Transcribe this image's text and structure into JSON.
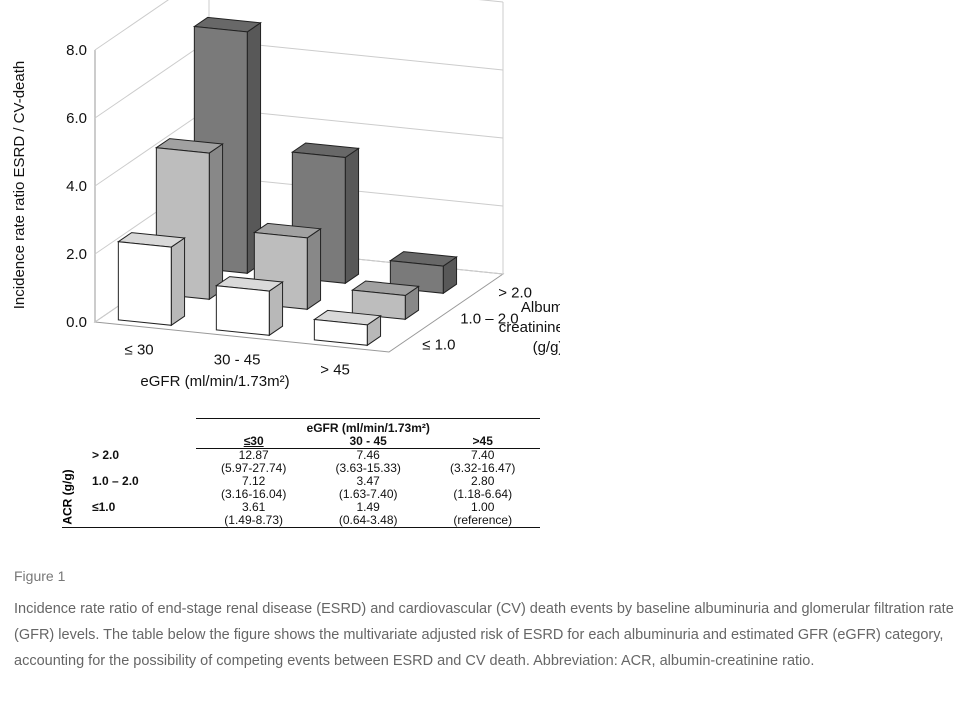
{
  "chart_data": {
    "type": "bar3d",
    "ylabel": "Incidence rate ratio ESRD / CV-death",
    "xlabel": "eGFR (ml/min/1.73m²)",
    "zlabel": [
      "Albumin",
      "creatinine ratio",
      "(g/g)"
    ],
    "categories": [
      "≤ 30",
      "30 - 45",
      "> 45"
    ],
    "ylim": [
      0,
      8
    ],
    "yticks": [
      {
        "value": 0,
        "label": "0.0"
      },
      {
        "value": 2,
        "label": "2.0"
      },
      {
        "value": 4,
        "label": "4.0"
      },
      {
        "value": 6,
        "label": "6.0"
      },
      {
        "value": 8,
        "label": "8.0"
      }
    ],
    "series": [
      {
        "name": "≤ 1.0",
        "color": "#ffffff",
        "values": [
          2.3,
          1.3,
          0.6
        ]
      },
      {
        "name": "1.0 – 2.0",
        "color": "#bdbdbd",
        "values": [
          4.3,
          2.1,
          0.7
        ]
      },
      {
        "name": "> 2.0",
        "color": "#7a7a7a",
        "values": [
          7.1,
          3.7,
          0.8
        ]
      }
    ]
  },
  "table": {
    "title": "eGFR (ml/min/1.73m²)",
    "row_header": "ACR (g/g)",
    "columns": [
      "≤30",
      "30 - 45",
      ">45"
    ],
    "rows": [
      {
        "label": "> 2.0",
        "cells": [
          [
            "12.87",
            "(5.97-27.74)"
          ],
          [
            "7.46",
            "(3.63-15.33)"
          ],
          [
            "7.40",
            "(3.32-16.47)"
          ]
        ]
      },
      {
        "label": "1.0 – 2.0",
        "cells": [
          [
            "7.12",
            "(3.16-16.04)"
          ],
          [
            "3.47",
            "(1.63-7.40)"
          ],
          [
            "2.80",
            "(1.18-6.64)"
          ]
        ]
      },
      {
        "label": "≤1.0",
        "cells": [
          [
            "3.61",
            "(1.49-8.73)"
          ],
          [
            "1.49",
            "(0.64-3.48)"
          ],
          [
            "1.00",
            "(reference)"
          ]
        ]
      }
    ]
  },
  "figure": {
    "label": "Figure 1",
    "caption": "Incidence rate ratio of end-stage renal disease (ESRD) and cardiovascular (CV) death events by baseline albuminuria and glomerular filtration rate (GFR) levels. The table below the figure shows the multivariate adjusted risk of ESRD for each albuminuria and estimated GFR (eGFR) category, accounting for the possibility of competing events between ESRD and CV death. Abbreviation: ACR, albumin-creatinine ratio."
  }
}
